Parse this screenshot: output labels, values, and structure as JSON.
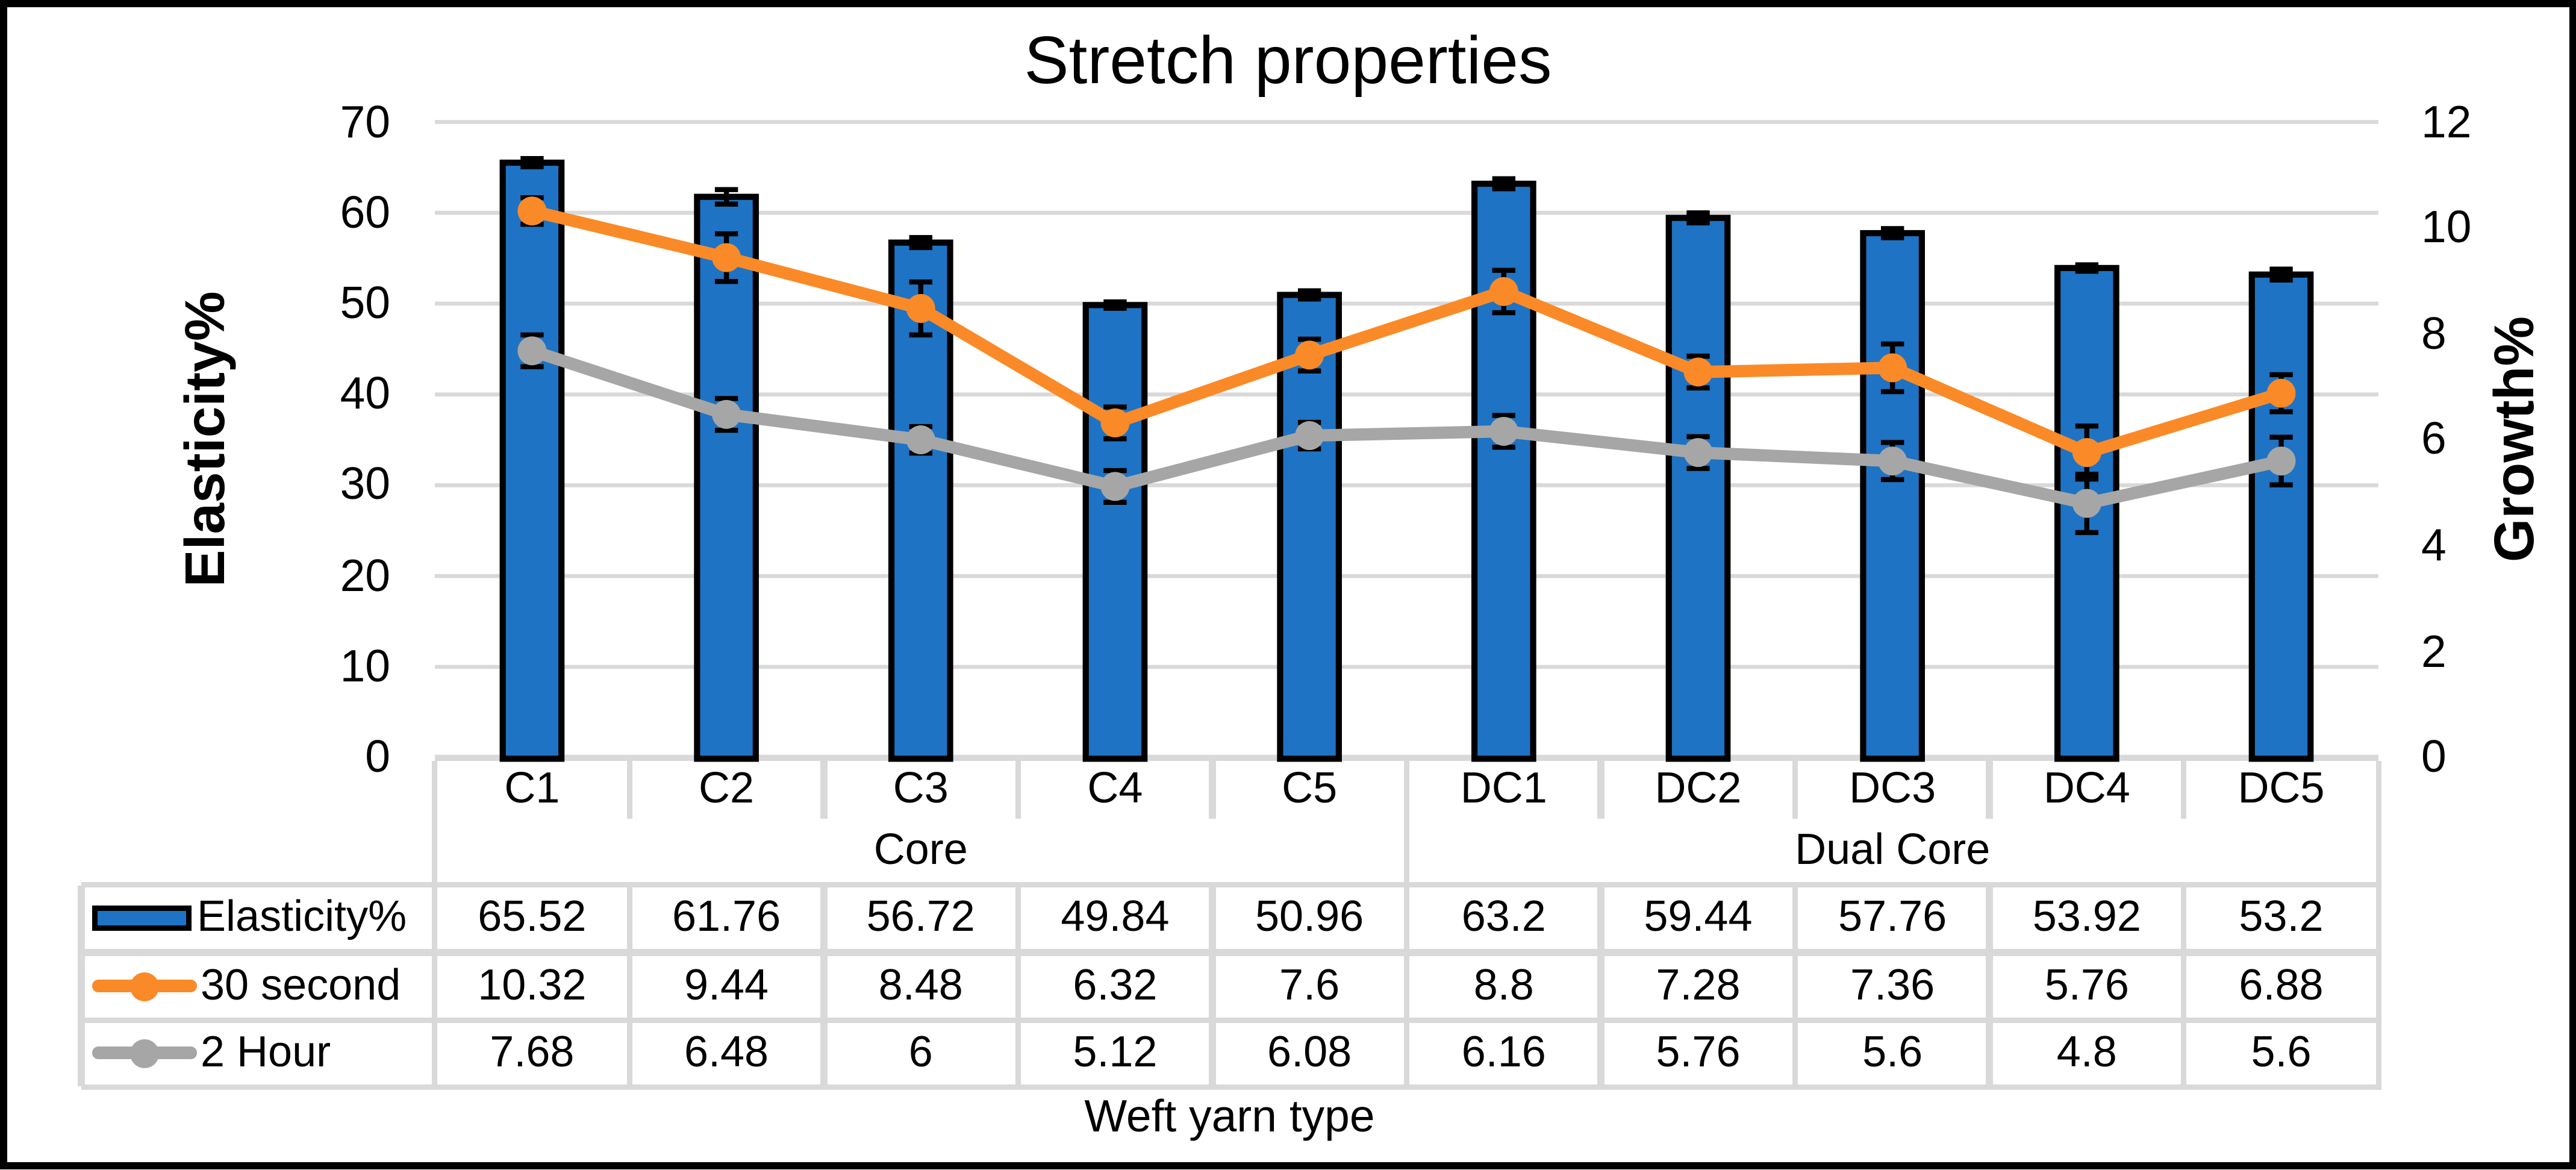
{
  "title": "Stretch properties",
  "chart_data": {
    "type": "combo",
    "title": "Stretch properties",
    "xlabel": "Weft yarn type",
    "categories": [
      "C1",
      "C2",
      "C3",
      "C4",
      "C5",
      "DC1",
      "DC2",
      "DC3",
      "DC4",
      "DC5"
    ],
    "category_groups": [
      {
        "label": "Core",
        "span": 5
      },
      {
        "label": "Dual Core",
        "span": 5
      }
    ],
    "axes": {
      "left": {
        "label": "Elasticity%",
        "min": 0,
        "max": 70,
        "step": 10
      },
      "right": {
        "label": "Growth%",
        "min": 0,
        "max": 12,
        "step": 2
      }
    },
    "series": [
      {
        "name": "Elasticity%",
        "type": "bar",
        "axis": "left",
        "color": "#1E73C4",
        "values": [
          65.52,
          61.76,
          56.72,
          49.84,
          50.96,
          63.2,
          59.44,
          57.76,
          53.92,
          53.2
        ],
        "errors": [
          0.45,
          0.8,
          0.55,
          0.35,
          0.45,
          0.55,
          0.55,
          0.5,
          0.35,
          0.6
        ]
      },
      {
        "name": "30 second",
        "type": "line",
        "axis": "right",
        "color": "#FA8A28",
        "values": [
          10.32,
          9.44,
          8.48,
          6.32,
          7.6,
          8.8,
          7.28,
          7.36,
          5.76,
          6.88
        ],
        "errors": [
          0.25,
          0.45,
          0.5,
          0.3,
          0.3,
          0.4,
          0.3,
          0.45,
          0.5,
          0.35
        ]
      },
      {
        "name": "2 Hour",
        "type": "line",
        "axis": "right",
        "color": "#A6A6A6",
        "values": [
          7.68,
          6.48,
          6,
          5.12,
          6.08,
          6.16,
          5.76,
          5.6,
          4.8,
          5.6
        ],
        "errors": [
          0.3,
          0.3,
          0.25,
          0.3,
          0.25,
          0.3,
          0.3,
          0.35,
          0.55,
          0.45
        ]
      }
    ],
    "grid": true,
    "legend_position": "table-left",
    "colors": {
      "grid_line": "#D9D9D9",
      "axis_line": "#D9D9D9",
      "table_border": "#D9D9D9",
      "error_bar": "#000000",
      "figure_border": "#000000",
      "background": "#FFFFFF",
      "text": "#000000"
    }
  }
}
